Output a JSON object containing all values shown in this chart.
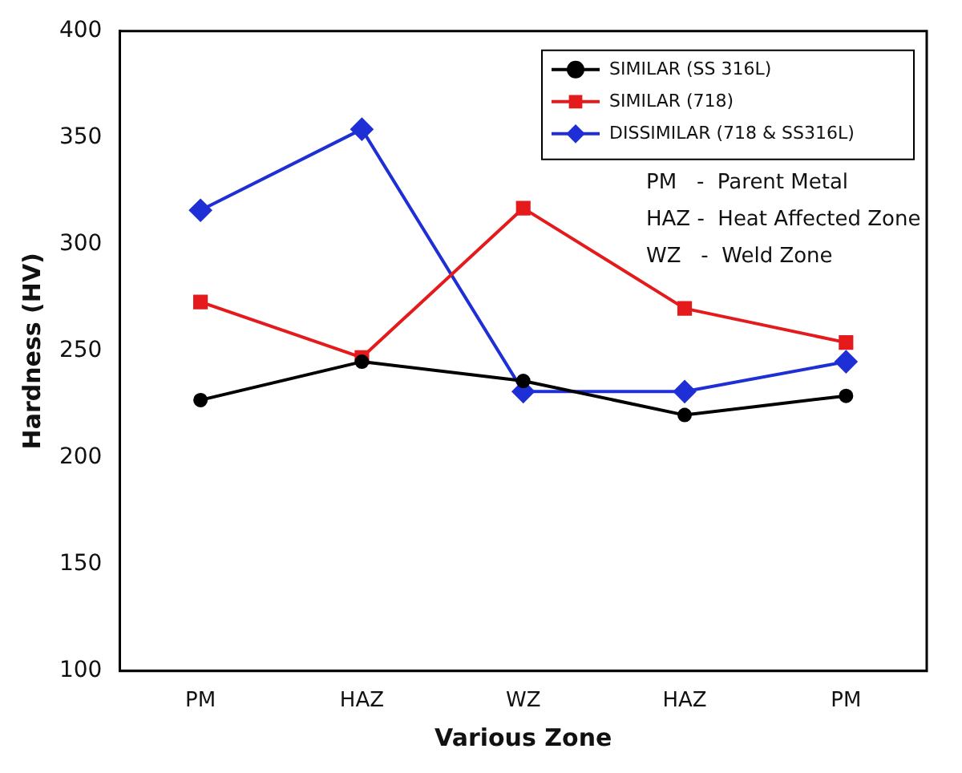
{
  "chart_data": {
    "type": "line",
    "xlabel": "Various Zone",
    "ylabel": "Hardness (HV)",
    "categories": [
      "PM",
      "HAZ",
      "WZ",
      "HAZ",
      "PM"
    ],
    "series": [
      {
        "name": "SIMILAR (SS 316L)",
        "color": "#000000",
        "marker": "circle",
        "values": [
          227,
          245,
          236,
          220,
          229
        ]
      },
      {
        "name": "SIMILAR (718)",
        "color": "#e41a1c",
        "marker": "square",
        "values": [
          273,
          247,
          317,
          270,
          254
        ]
      },
      {
        "name": "DISSIMILAR (718 & SS316L)",
        "color": "#1f2fd6",
        "marker": "diamond",
        "values": [
          316,
          354,
          231,
          231,
          245
        ]
      }
    ],
    "ylim": [
      100,
      400
    ],
    "yticks": [
      100,
      150,
      200,
      250,
      300,
      350,
      400
    ],
    "grid": false,
    "legend": "top right",
    "annotations": [
      "PM   -  Parent Metal",
      "HAZ -  Heat Affected Zone",
      "WZ   -  Weld Zone"
    ]
  }
}
